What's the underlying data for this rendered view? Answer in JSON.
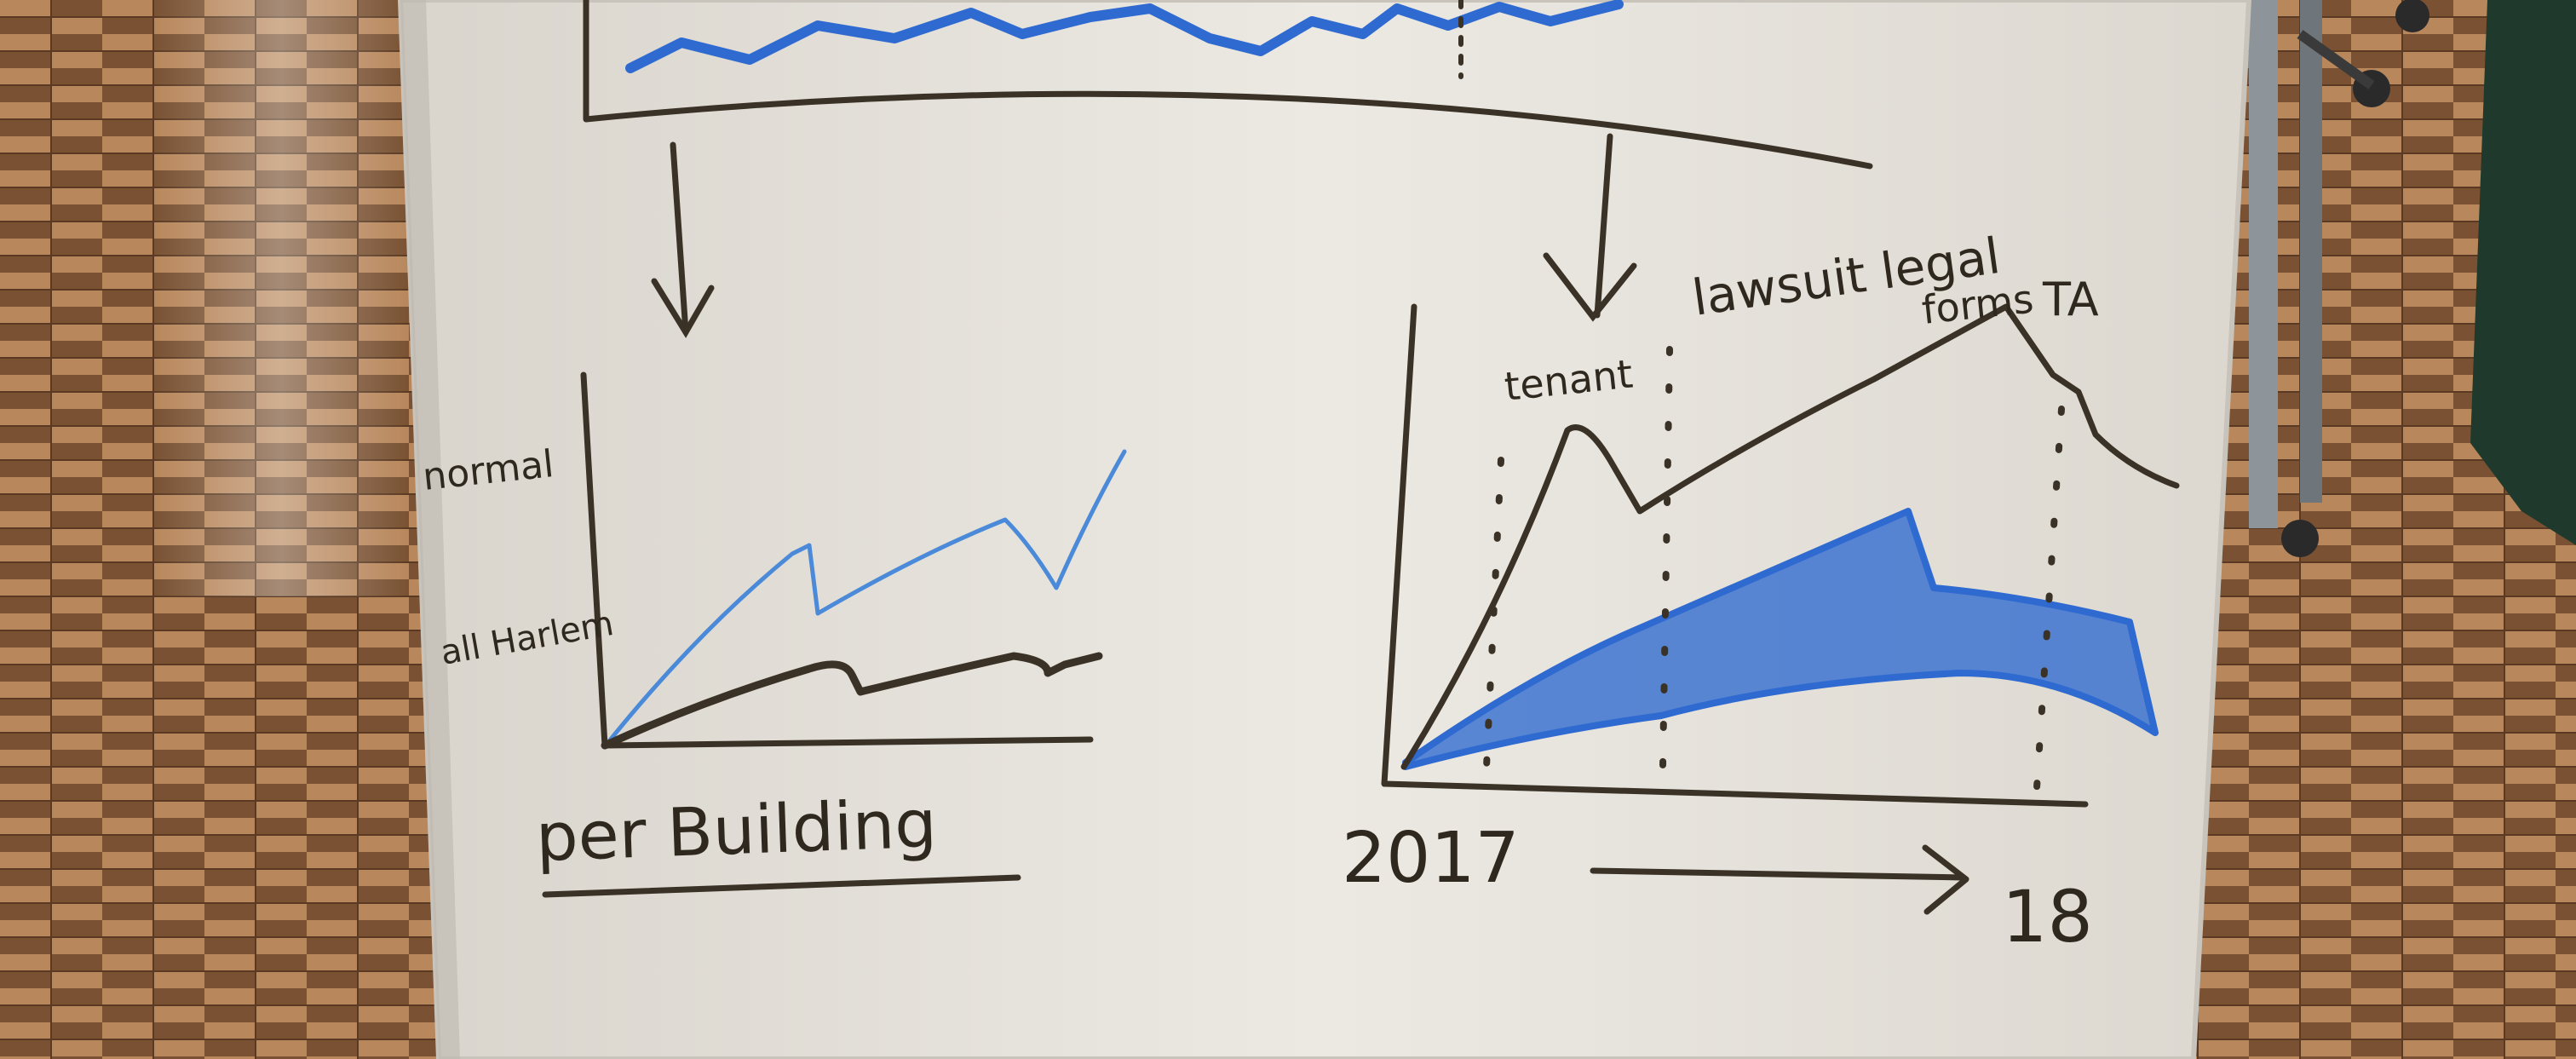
{
  "colors": {
    "floor_light": "#b8875c",
    "floor_dark": "#5a3a22",
    "board": "#e6e2da",
    "board_frame": "#c9c4bb",
    "marker_black": "#3a3226",
    "marker_blue": "#2f6ad0",
    "easel_leg": "#8d959b",
    "cloth_green": "#1f3a2c"
  },
  "whiteboard": {
    "left_chart": {
      "y_label_top": "normal",
      "y_label_bottom": "all Harlem",
      "caption": "per Building"
    },
    "right_chart": {
      "annotation_1": "tenant",
      "annotation_2": "lawsuit legal",
      "annotation_3": "forms",
      "annotation_4": "TA",
      "x_start": "2017",
      "x_end": "18"
    }
  }
}
